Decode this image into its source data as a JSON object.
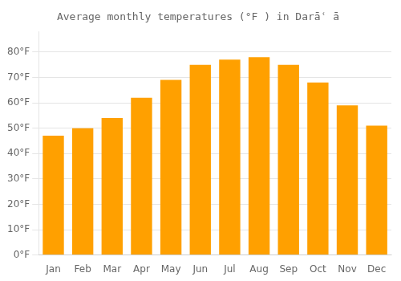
{
  "chart_data": {
    "type": "bar",
    "title": "Average monthly temperatures (°F ) in Darāʿ ā",
    "categories": [
      "Jan",
      "Feb",
      "Mar",
      "Apr",
      "May",
      "Jun",
      "Jul",
      "Aug",
      "Sep",
      "Oct",
      "Nov",
      "Dec"
    ],
    "values": [
      47,
      50,
      54,
      62,
      69,
      75,
      77,
      78,
      75,
      68,
      59,
      51
    ],
    "color": "#FFA000",
    "ylim": [
      0,
      88
    ],
    "yticks": [
      {
        "value": 0,
        "label": "0°F"
      },
      {
        "value": 10,
        "label": "10°F"
      },
      {
        "value": 20,
        "label": "20°F"
      },
      {
        "value": 30,
        "label": "30°F"
      },
      {
        "value": 40,
        "label": "40°F"
      },
      {
        "value": 50,
        "label": "50°F"
      },
      {
        "value": 60,
        "label": "60°F"
      },
      {
        "value": 70,
        "label": "70°F"
      },
      {
        "value": 80,
        "label": "80°F"
      }
    ],
    "grid": true
  }
}
